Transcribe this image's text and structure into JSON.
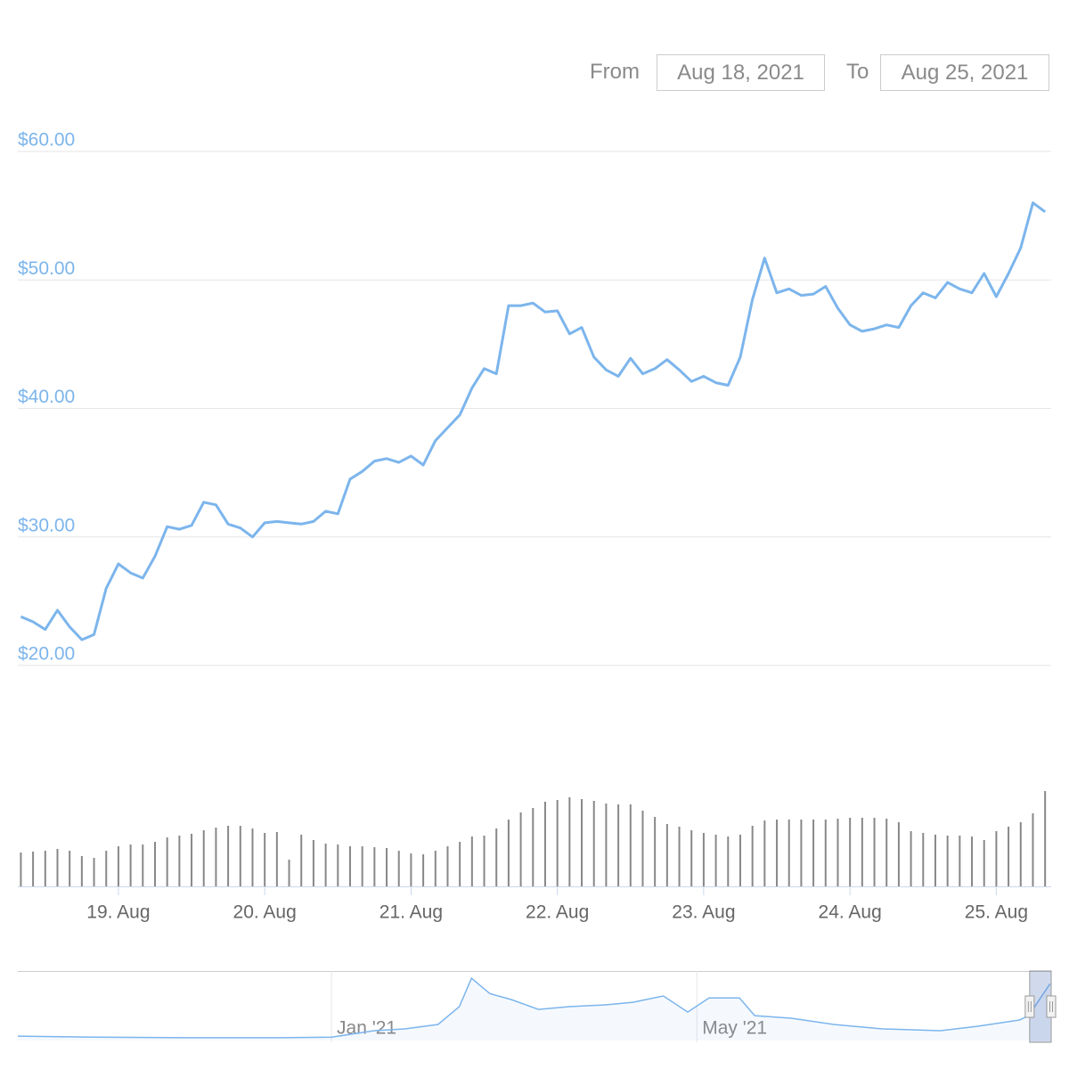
{
  "range_selector": {
    "from_label": "From",
    "from": "Aug 18, 2021",
    "to_label": "To",
    "to": "Aug 25, 2021"
  },
  "chart_data": [
    {
      "type": "stock",
      "x": [
        "2021-08-18T08:00",
        "2021-08-18T10:00",
        "2021-08-18T12:00",
        "2021-08-18T14:00",
        "2021-08-18T16:00",
        "2021-08-18T18:00",
        "2021-08-18T20:00",
        "2021-08-18T22:00",
        "2021-08-19T00:00",
        "2021-08-19T02:00",
        "2021-08-19T04:00",
        "2021-08-19T06:00",
        "2021-08-19T08:00",
        "2021-08-19T10:00",
        "2021-08-19T12:00",
        "2021-08-19T14:00",
        "2021-08-19T16:00",
        "2021-08-19T18:00",
        "2021-08-19T20:00",
        "2021-08-19T22:00",
        "2021-08-20T00:00",
        "2021-08-20T02:00",
        "2021-08-20T04:00",
        "2021-08-20T06:00",
        "2021-08-20T08:00",
        "2021-08-20T10:00",
        "2021-08-20T12:00",
        "2021-08-20T14:00",
        "2021-08-20T16:00",
        "2021-08-20T18:00",
        "2021-08-20T20:00",
        "2021-08-20T22:00",
        "2021-08-21T00:00",
        "2021-08-21T02:00",
        "2021-08-21T04:00",
        "2021-08-21T06:00",
        "2021-08-21T08:00",
        "2021-08-21T10:00",
        "2021-08-21T12:00",
        "2021-08-21T14:00",
        "2021-08-21T16:00",
        "2021-08-21T18:00",
        "2021-08-21T20:00",
        "2021-08-21T22:00",
        "2021-08-22T00:00",
        "2021-08-22T02:00",
        "2021-08-22T04:00",
        "2021-08-22T06:00",
        "2021-08-22T08:00",
        "2021-08-22T10:00",
        "2021-08-22T12:00",
        "2021-08-22T14:00",
        "2021-08-22T16:00",
        "2021-08-22T18:00",
        "2021-08-22T20:00",
        "2021-08-22T22:00",
        "2021-08-23T00:00",
        "2021-08-23T02:00",
        "2021-08-23T04:00",
        "2021-08-23T06:00",
        "2021-08-23T08:00",
        "2021-08-23T10:00",
        "2021-08-23T12:00",
        "2021-08-23T14:00",
        "2021-08-23T16:00",
        "2021-08-23T18:00",
        "2021-08-23T20:00",
        "2021-08-23T22:00",
        "2021-08-24T00:00",
        "2021-08-24T02:00",
        "2021-08-24T04:00",
        "2021-08-24T06:00",
        "2021-08-24T08:00",
        "2021-08-24T10:00",
        "2021-08-24T12:00",
        "2021-08-24T14:00",
        "2021-08-24T16:00",
        "2021-08-24T18:00",
        "2021-08-24T20:00",
        "2021-08-24T22:00",
        "2021-08-25T00:00",
        "2021-08-25T02:00",
        "2021-08-25T04:00",
        "2021-08-25T06:00",
        "2021-08-25T08:00"
      ],
      "series": [
        {
          "color": "#7cb5ec",
          "values": [
            23.8,
            23.4,
            22.8,
            24.3,
            23.0,
            22.0,
            22.4,
            26.0,
            27.9,
            27.2,
            26.8,
            28.5,
            30.8,
            30.6,
            30.9,
            32.7,
            32.5,
            31.0,
            30.7,
            30.0,
            31.1,
            31.2,
            31.1,
            31.0,
            31.2,
            32.0,
            31.8,
            34.5,
            35.1,
            35.9,
            36.1,
            35.8,
            36.3,
            35.6,
            37.5,
            38.5,
            39.5,
            41.6,
            43.1,
            42.7,
            48.0,
            48.0,
            48.2,
            47.5,
            47.6,
            45.8,
            46.3,
            44.0,
            43.0,
            42.5,
            43.9,
            42.7,
            43.1,
            43.8,
            43.0,
            42.1,
            42.5,
            42.0,
            41.8,
            44.0,
            48.5,
            51.7,
            49.0,
            49.3,
            48.8,
            48.9,
            49.5,
            47.8,
            46.5,
            46.0,
            46.2,
            46.5,
            46.3,
            48.0,
            49.0,
            48.6,
            49.8,
            49.3,
            49.0,
            50.5,
            48.7,
            50.5,
            52.5,
            56.0,
            55.3
          ]
        },
        {
          "color": "#888888",
          "axis": "y2",
          "values": [
            38,
            39,
            40,
            42,
            40,
            34,
            32,
            40,
            45,
            47,
            47,
            50,
            55,
            57,
            59,
            63,
            66,
            68,
            68,
            65,
            60,
            61,
            30,
            58,
            52,
            48,
            47,
            45,
            45,
            44,
            43,
            40,
            37,
            36,
            40,
            45,
            50,
            56,
            57,
            65,
            75,
            83,
            88,
            95,
            97,
            100,
            98,
            96,
            93,
            92,
            92,
            85,
            78,
            70,
            67,
            63,
            60,
            58,
            56,
            58,
            68,
            74,
            75,
            75,
            75,
            75,
            75,
            76,
            77,
            77,
            77,
            76,
            72,
            62,
            60,
            58,
            57,
            57,
            56,
            52,
            62,
            67,
            72,
            82,
            107
          ]
        }
      ],
      "xlim": [
        "2021-08-18T07:30",
        "2021-08-25T09:00"
      ],
      "xticks": [
        {
          "value": "2021-08-19T00:00",
          "label": "19. Aug"
        },
        {
          "value": "2021-08-20T00:00",
          "label": "20. Aug"
        },
        {
          "value": "2021-08-21T00:00",
          "label": "21. Aug"
        },
        {
          "value": "2021-08-22T00:00",
          "label": "22. Aug"
        },
        {
          "value": "2021-08-23T00:00",
          "label": "23. Aug"
        },
        {
          "value": "2021-08-24T00:00",
          "label": "24. Aug"
        },
        {
          "value": "2021-08-25T00:00",
          "label": "25. Aug"
        }
      ],
      "ylim": [
        20,
        60
      ],
      "yticks": [
        {
          "value": 20,
          "label": "$20.00"
        },
        {
          "value": 30,
          "label": "$30.00"
        },
        {
          "value": 40,
          "label": "$40.00"
        },
        {
          "value": 50,
          "label": "$50.00"
        },
        {
          "value": 60,
          "label": "$60.00"
        }
      ],
      "y2lim": [
        0,
        120
      ],
      "grid": true
    },
    {
      "type": "area",
      "x": [
        "2020-09-20",
        "2020-10-15",
        "2020-11-15",
        "2020-12-15",
        "2021-01-01",
        "2021-01-15",
        "2021-01-25",
        "2021-02-05",
        "2021-02-12",
        "2021-02-16",
        "2021-02-22",
        "2021-03-01",
        "2021-03-10",
        "2021-03-20",
        "2021-04-01",
        "2021-04-10",
        "2021-04-20",
        "2021-04-28",
        "2021-05-05",
        "2021-05-15",
        "2021-05-20",
        "2021-06-01",
        "2021-06-15",
        "2021-07-01",
        "2021-07-20",
        "2021-08-01",
        "2021-08-15",
        "2021-08-18",
        "2021-08-25"
      ],
      "values": [
        4,
        3,
        2.5,
        2.5,
        3,
        9,
        10.6,
        14.7,
        31,
        57,
        43,
        37.5,
        28.5,
        31,
        32.6,
        35,
        40.8,
        26,
        39,
        39,
        22.8,
        20.4,
        14.7,
        10.6,
        9,
        13,
        18.8,
        22.8,
        52
      ],
      "color": "#7cb5ec",
      "xlim": [
        "2020-09-20",
        "2021-08-25T09:00"
      ],
      "xticks": [
        {
          "value": "2021-01-01",
          "label": "Jan '21"
        },
        {
          "value": "2021-05-01",
          "label": "May '21"
        }
      ],
      "ylim": [
        0,
        62
      ]
    }
  ]
}
